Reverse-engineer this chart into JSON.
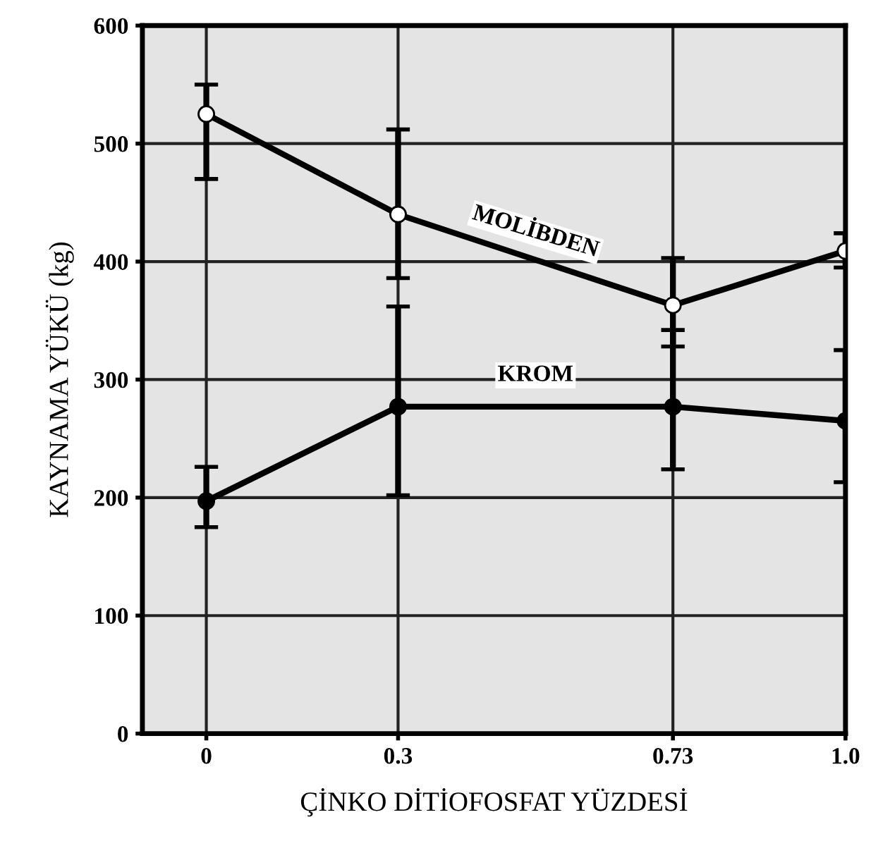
{
  "chart_data": {
    "type": "line",
    "xlabel": "ÇİNKO DİTİOFOSFAT YÜZDESİ",
    "ylabel": "KAYNAMA YÜKÜ (kg)",
    "x": [
      0,
      0.3,
      0.73,
      1.0
    ],
    "series": [
      {
        "name": "MOLİBDEN",
        "color": "#000000",
        "values": [
          525,
          440,
          363,
          409
        ],
        "errors": [
          [
            470,
            550
          ],
          [
            386,
            512
          ],
          [
            328,
            403
          ],
          [
            395,
            424
          ]
        ]
      },
      {
        "name": "KROM",
        "color": "#000000",
        "values": [
          197,
          277,
          277,
          265
        ],
        "errors": [
          [
            175,
            226
          ],
          [
            202,
            362
          ],
          [
            224,
            342
          ],
          [
            213,
            325
          ]
        ]
      }
    ],
    "xlim": [
      -0.1,
      1.0
    ],
    "ylim": [
      0,
      600
    ],
    "xticks": [
      0,
      0.3,
      0.73,
      {
        "value": 1.0,
        "label": "1.0"
      }
    ],
    "yticks": [
      0,
      100,
      200,
      300,
      400,
      500,
      600
    ],
    "grid": true,
    "marker": "circle",
    "line_style": "solid",
    "legend": false
  }
}
